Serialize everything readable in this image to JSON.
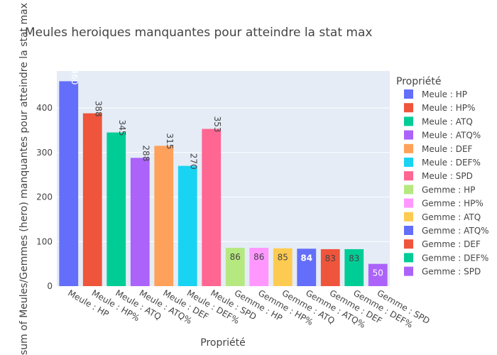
{
  "chart_data": {
    "type": "bar",
    "title": "Meules heroiques manquantes pour atteindre la stat max",
    "xlabel": "Propriété",
    "ylabel": "sum of Meules/Gemmes (hero) manquantes pour atteindre la stat max",
    "ylim": [
      0,
      483
    ],
    "yticks": [
      0,
      100,
      200,
      300,
      400
    ],
    "grid": true,
    "legend_title": "Propriété",
    "legend_position": "right",
    "categories": [
      "Meule : HP",
      "Meule : HP%",
      "Meule : ATQ",
      "Meule : ATQ%",
      "Meule : DEF",
      "Meule : DEF%",
      "Meule : SPD",
      "Gemme : HP",
      "Gemme : HP%",
      "Gemme : ATQ",
      "Gemme : ATQ%",
      "Gemme : DEF",
      "Gemme : DEF%",
      "Gemme : SPD"
    ],
    "values": [
      460,
      388,
      345,
      288,
      315,
      270,
      353,
      86,
      86,
      85,
      84,
      83,
      83,
      50
    ],
    "colors": [
      "#636efa",
      "#EF553B",
      "#00cc96",
      "#ab63fa",
      "#FFA15A",
      "#19d3f3",
      "#FF6692",
      "#B6E880",
      "#FF97FF",
      "#FECB52",
      "#636efa",
      "#EF553B",
      "#00cc96",
      "#ab63fa"
    ]
  }
}
